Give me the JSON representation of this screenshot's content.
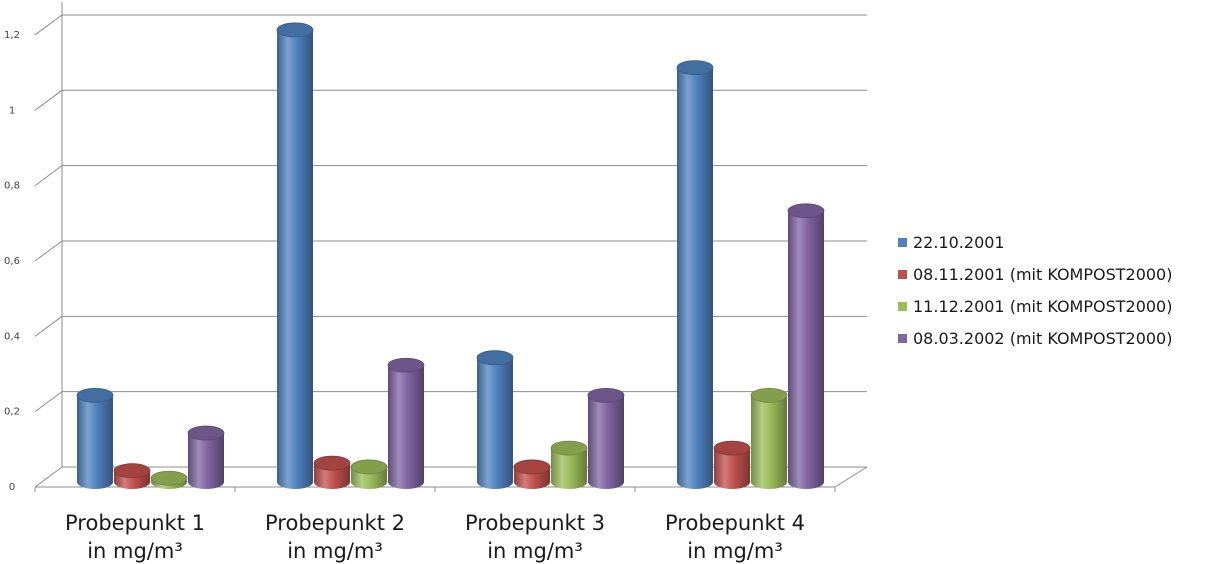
{
  "chart_data": {
    "type": "bar",
    "categories": [
      [
        "Probepunkt 1",
        "in mg/m³"
      ],
      [
        "Probepunkt 2",
        "in mg/m³"
      ],
      [
        "Probepunkt 3",
        "in mg/m³"
      ],
      [
        "Probepunkt 4",
        "in mg/m³"
      ]
    ],
    "series": [
      {
        "name": "22.10.2001",
        "color": "#4f81bd",
        "values": [
          0.23,
          1.2,
          0.33,
          1.1
        ]
      },
      {
        "name": "08.11.2001 (mit KOMPOST2000)",
        "color": "#c0504d",
        "values": [
          0.03,
          0.05,
          0.04,
          0.09
        ]
      },
      {
        "name": "11.12.2001 (mit KOMPOST2000)",
        "color": "#9bbb59",
        "values": [
          0.01,
          0.04,
          0.09,
          0.23
        ]
      },
      {
        "name": "08.03.2002 (mit KOMPOST2000)",
        "color": "#8064a2",
        "values": [
          0.13,
          0.31,
          0.23,
          0.72
        ]
      }
    ],
    "yticks": [
      "0",
      "0,2",
      "0,4",
      "0,6",
      "0,8",
      "1",
      "1,2"
    ],
    "ylim": [
      0,
      1.25
    ],
    "grid": true,
    "legend_position": "right",
    "title": "",
    "xlabel": "",
    "ylabel": ""
  }
}
